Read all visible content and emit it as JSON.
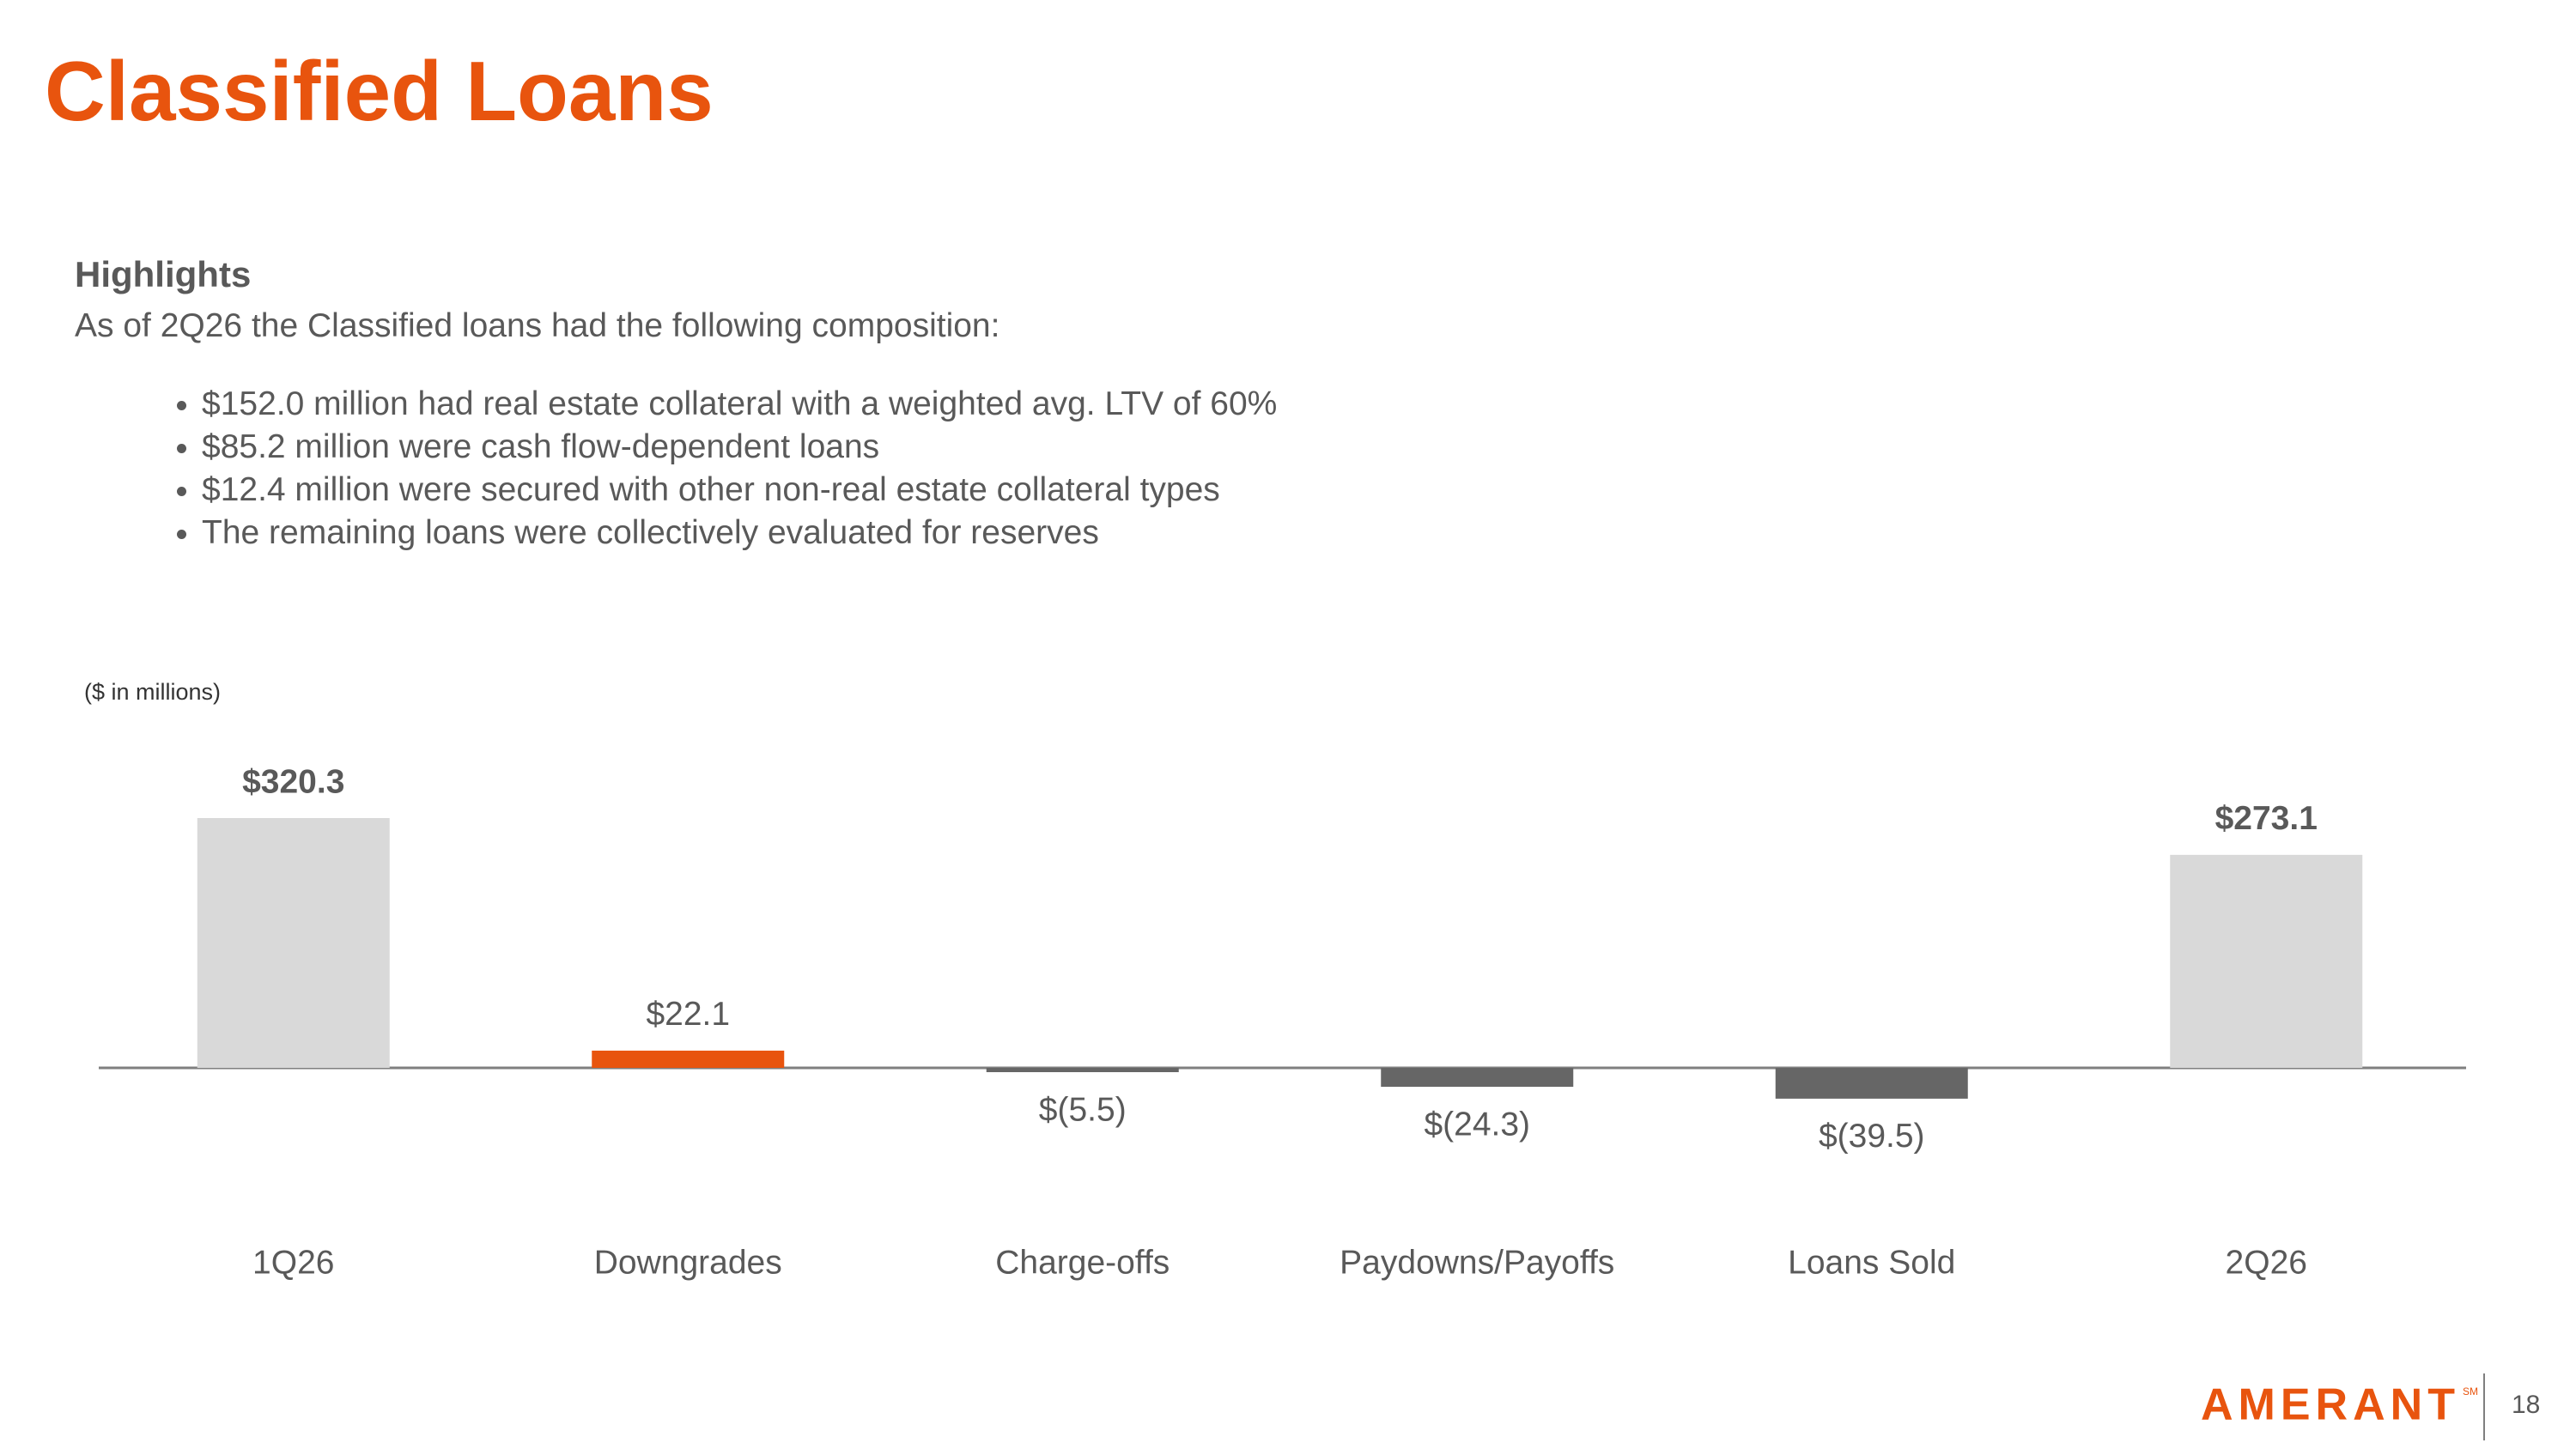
{
  "title": "Classified Loans",
  "highlights": {
    "heading": "Highlights",
    "intro": "As of 2Q26 the Classified loans had the following composition:",
    "bullets": [
      "$152.0 million had real estate collateral with a weighted avg. LTV of 60%",
      "$85.2 million were cash flow-dependent loans",
      "$12.4 million were secured with other non-real estate collateral types",
      "The remaining loans were collectively evaluated for reserves"
    ]
  },
  "footer": {
    "logo": "AMERANT",
    "logo_mark": "SM",
    "page_number": "18"
  },
  "chart_data": {
    "type": "bar",
    "subtitle": "($ in millions)",
    "categories": [
      "1Q26",
      "Downgrades",
      "Charge-offs",
      "Paydowns/Payoffs",
      "Loans Sold",
      "2Q26"
    ],
    "values": [
      320.3,
      22.1,
      -5.5,
      -24.3,
      -39.5,
      273.1
    ],
    "value_labels": [
      "$320.3",
      "$22.1",
      "$(5.5)",
      "$(24.3)",
      "$(39.5)",
      "$273.1"
    ],
    "colors": [
      "#d9d9d9",
      "#e8540e",
      "#666666",
      "#666666",
      "#666666",
      "#d9d9d9"
    ]
  }
}
